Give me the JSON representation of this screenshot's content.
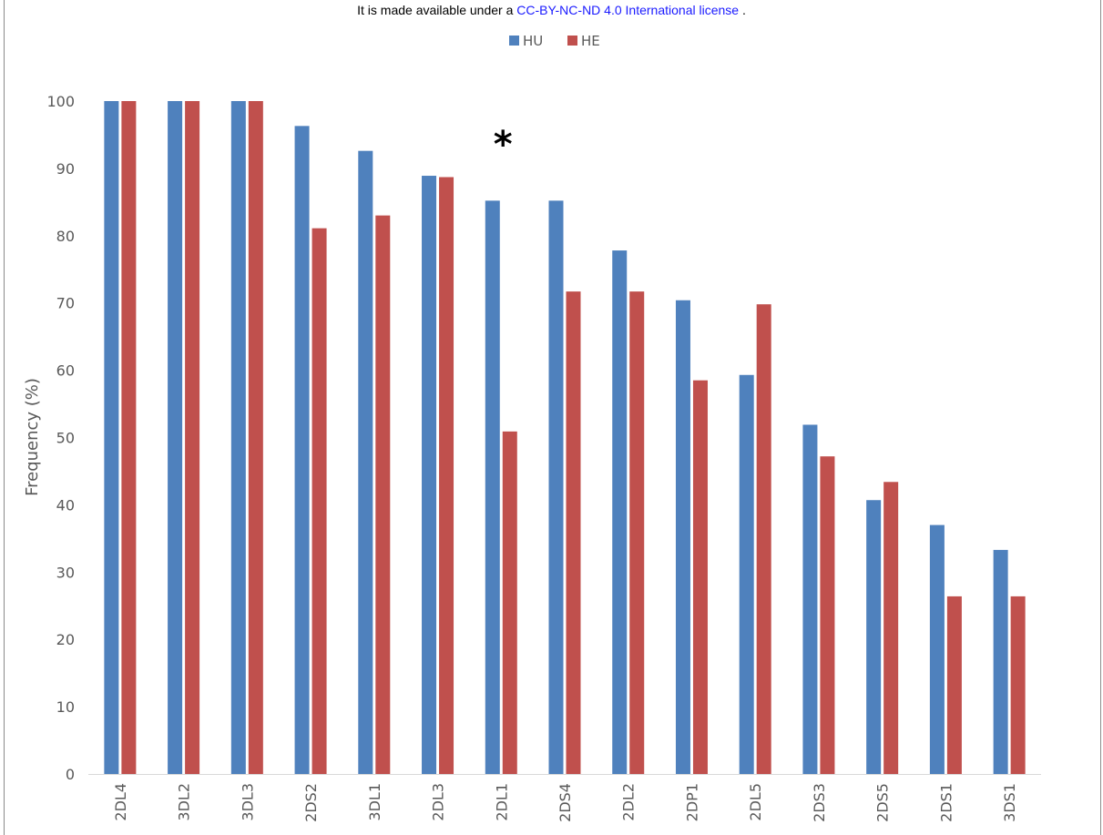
{
  "license": {
    "prefix": "It is made available under a ",
    "link": "CC-BY-NC-ND 4.0 International license",
    "suffix": " ."
  },
  "chart_data": {
    "type": "bar",
    "title": "",
    "xlabel": "",
    "ylabel": "Frequency (%)",
    "ylim": [
      0,
      100
    ],
    "yticks": [
      0,
      10,
      20,
      30,
      40,
      50,
      60,
      70,
      80,
      90,
      100
    ],
    "grid": false,
    "legend_position": "top-center",
    "categories": [
      "2DL4",
      "3DL2",
      "3DL3",
      "2DS2",
      "3DL1",
      "2DL3",
      "2DL1",
      "2DS4",
      "2DL2",
      "2DP1",
      "2DL5",
      "2DS3",
      "2DS5",
      "2DS1",
      "3DS1"
    ],
    "series": [
      {
        "name": "HU",
        "color": "#4f81bd",
        "values": [
          100,
          100,
          100,
          96.3,
          92.6,
          88.9,
          85.2,
          85.2,
          77.8,
          70.4,
          59.3,
          51.9,
          40.7,
          37.0,
          33.3
        ]
      },
      {
        "name": "HE",
        "color": "#c0504d",
        "values": [
          100,
          100,
          100,
          81.1,
          83.0,
          88.7,
          50.9,
          71.7,
          71.7,
          58.5,
          69.8,
          47.2,
          43.4,
          26.4,
          26.4
        ]
      }
    ],
    "annotations": [
      {
        "text": "*",
        "category": "2DL1"
      }
    ]
  }
}
